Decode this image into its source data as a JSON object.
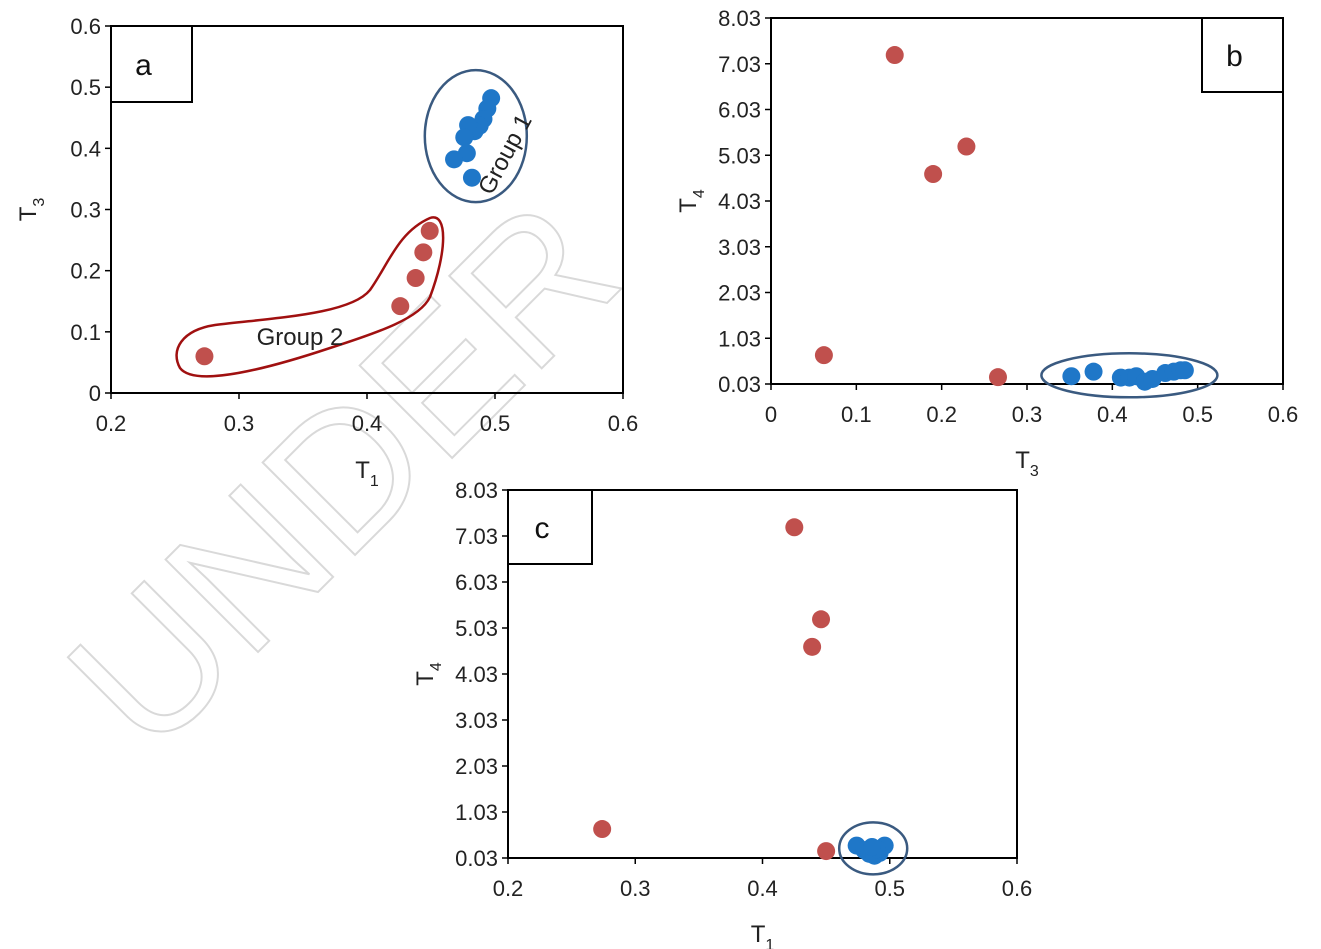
{
  "watermark": "UNDER",
  "colors": {
    "group1": "#1f77c8",
    "group2": "#c0504d",
    "ellipse1": "#3a5a80",
    "outline2": "#a01010"
  },
  "chart_data": [
    {
      "id": "a",
      "type": "scatter",
      "panel_label": "a",
      "xlabel": "T",
      "xlabel_sub": "1",
      "ylabel": "T",
      "ylabel_sub": "3",
      "xlim": [
        0.2,
        0.6
      ],
      "ylim": [
        0,
        0.6
      ],
      "xticks": [
        "0.2",
        "0.3",
        "0.4",
        "0.5",
        "0.6"
      ],
      "yticks": [
        "0",
        "0.1",
        "0.2",
        "0.3",
        "0.4",
        "0.5",
        "0.6"
      ],
      "annotations": [
        "Group 1",
        "Group 2"
      ],
      "series": [
        {
          "group": "group1",
          "points": [
            [
              0.497,
              0.482
            ],
            [
              0.494,
              0.465
            ],
            [
              0.491,
              0.448
            ],
            [
              0.488,
              0.437
            ],
            [
              0.484,
              0.428
            ],
            [
              0.479,
              0.438
            ],
            [
              0.476,
              0.418
            ],
            [
              0.478,
              0.392
            ],
            [
              0.468,
              0.382
            ],
            [
              0.482,
              0.352
            ]
          ]
        },
        {
          "group": "group2",
          "points": [
            [
              0.449,
              0.265
            ],
            [
              0.444,
              0.23
            ],
            [
              0.438,
              0.188
            ],
            [
              0.426,
              0.142
            ],
            [
              0.273,
              0.06
            ]
          ]
        }
      ]
    },
    {
      "id": "b",
      "type": "scatter",
      "panel_label": "b",
      "xlabel": "T",
      "xlabel_sub": "3",
      "ylabel": "T",
      "ylabel_sub": "4",
      "xlim": [
        0,
        0.6
      ],
      "ylim": [
        0.03,
        8.03
      ],
      "xticks": [
        "0",
        "0.1",
        "0.2",
        "0.3",
        "0.4",
        "0.5",
        "0.6"
      ],
      "yticks": [
        "0.03",
        "1.03",
        "2.03",
        "3.03",
        "4.03",
        "5.03",
        "6.03",
        "7.03",
        "8.03"
      ],
      "series": [
        {
          "group": "group2",
          "points": [
            [
              0.145,
              7.22
            ],
            [
              0.229,
              5.22
            ],
            [
              0.19,
              4.62
            ],
            [
              0.062,
              0.66
            ],
            [
              0.266,
              0.18
            ]
          ]
        },
        {
          "group": "group1",
          "points": [
            [
              0.352,
              0.2
            ],
            [
              0.378,
              0.3
            ],
            [
              0.41,
              0.17
            ],
            [
              0.42,
              0.17
            ],
            [
              0.428,
              0.2
            ],
            [
              0.438,
              0.08
            ],
            [
              0.447,
              0.14
            ],
            [
              0.462,
              0.27
            ],
            [
              0.472,
              0.3
            ],
            [
              0.48,
              0.33
            ],
            [
              0.485,
              0.33
            ]
          ]
        }
      ]
    },
    {
      "id": "c",
      "type": "scatter",
      "panel_label": "c",
      "xlabel": "T",
      "xlabel_sub": "1",
      "ylabel": "T",
      "ylabel_sub": "4",
      "xlim": [
        0.2,
        0.6
      ],
      "ylim": [
        0.03,
        8.03
      ],
      "xticks": [
        "0.2",
        "0.3",
        "0.4",
        "0.5",
        "0.6"
      ],
      "yticks": [
        "0.03",
        "1.03",
        "2.03",
        "3.03",
        "4.03",
        "5.03",
        "6.03",
        "7.03",
        "8.03"
      ],
      "series": [
        {
          "group": "group2",
          "points": [
            [
              0.425,
              7.22
            ],
            [
              0.446,
              5.22
            ],
            [
              0.439,
              4.62
            ],
            [
              0.274,
              0.66
            ],
            [
              0.45,
              0.18
            ]
          ]
        },
        {
          "group": "group1",
          "points": [
            [
              0.474,
              0.3
            ],
            [
              0.48,
              0.2
            ],
            [
              0.484,
              0.12
            ],
            [
              0.488,
              0.08
            ],
            [
              0.492,
              0.14
            ],
            [
              0.496,
              0.3
            ],
            [
              0.49,
              0.22
            ],
            [
              0.486,
              0.27
            ]
          ]
        }
      ]
    }
  ]
}
